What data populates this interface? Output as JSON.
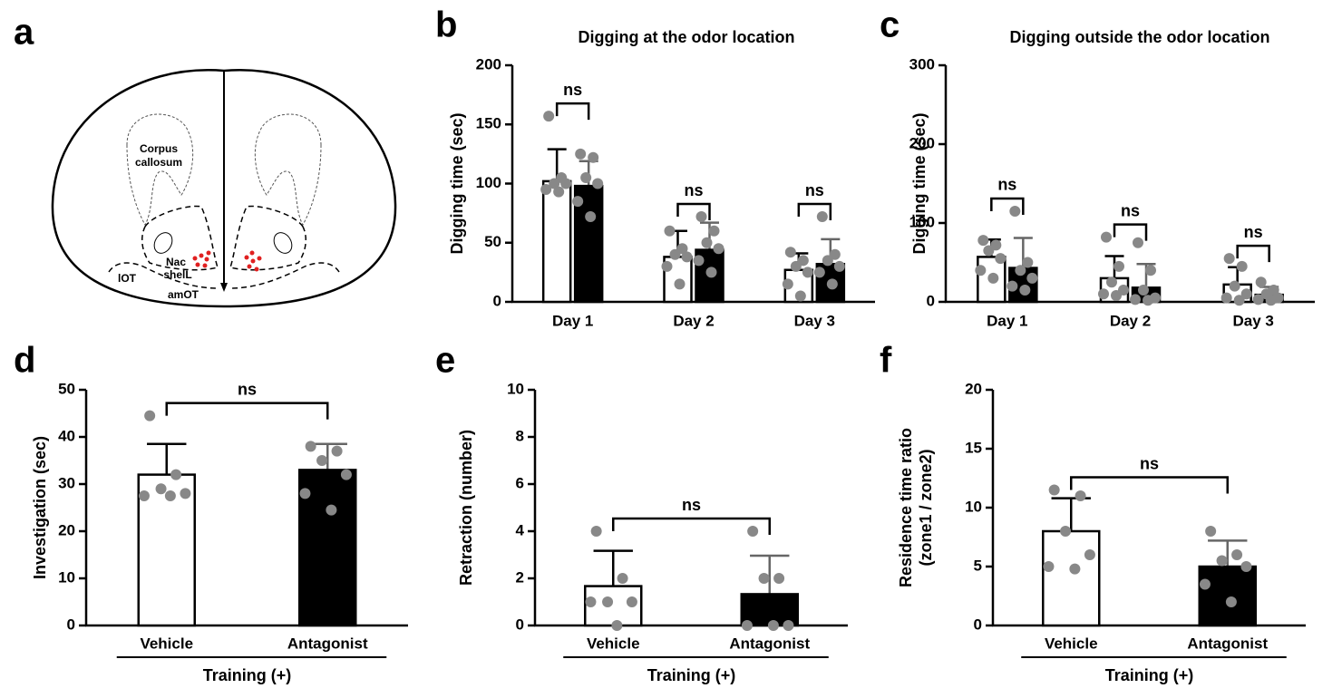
{
  "diagram": {
    "panel": "a",
    "labels": {
      "corpus": [
        "Corpus",
        "callosum"
      ],
      "nac": [
        "Nac",
        "shelL"
      ],
      "lot": "lOT",
      "amot": "amOT"
    }
  },
  "chart_data": [
    {
      "type": "grouped_bar",
      "panel": "b",
      "title": "Digging at the odor location",
      "ylabel": "Digging time (sec)",
      "categories": [
        "Day 1",
        "Day 2",
        "Day 3"
      ],
      "series": [
        {
          "color": "#ffffff",
          "values": [
            102,
            38,
            27
          ],
          "errors": [
            27,
            22,
            14
          ],
          "points": [
            [
              157,
              105,
              100,
              100,
              95,
              93
            ],
            [
              60,
              45,
              40,
              38,
              30,
              15
            ],
            [
              42,
              35,
              30,
              25,
              15,
              5
            ]
          ]
        },
        {
          "color": "#000000",
          "values": [
            98,
            44,
            32
          ],
          "errors": [
            21,
            23,
            21
          ],
          "points": [
            [
              125,
              122,
              105,
              100,
              85,
              72
            ],
            [
              72,
              60,
              50,
              45,
              35,
              25
            ],
            [
              72,
              40,
              35,
              30,
              25,
              15
            ]
          ]
        }
      ],
      "annotations": [
        "ns",
        "ns",
        "ns"
      ],
      "ylim": [
        0,
        200
      ],
      "yticks": [
        0,
        50,
        100,
        150,
        200
      ]
    },
    {
      "type": "grouped_bar",
      "panel": "c",
      "title": "Digging outside the odor location",
      "ylabel": "Digging time (sec)",
      "categories": [
        "Day 1",
        "Day 2",
        "Day 3"
      ],
      "series": [
        {
          "color": "#ffffff",
          "values": [
            57,
            30,
            22
          ],
          "errors": [
            22,
            28,
            22
          ],
          "points": [
            [
              78,
              72,
              65,
              55,
              40,
              30
            ],
            [
              82,
              45,
              25,
              15,
              10,
              8
            ],
            [
              55,
              45,
              20,
              10,
              5,
              2
            ]
          ]
        },
        {
          "color": "#000000",
          "values": [
            43,
            18,
            9
          ],
          "errors": [
            38,
            30,
            10
          ],
          "points": [
            [
              115,
              50,
              40,
              30,
              20,
              15
            ],
            [
              75,
              40,
              15,
              5,
              3,
              2
            ],
            [
              25,
              15,
              10,
              5,
              3,
              2
            ]
          ]
        }
      ],
      "annotations": [
        "ns",
        "ns",
        "ns"
      ],
      "ylim": [
        0,
        300
      ],
      "yticks": [
        0,
        100,
        200,
        300
      ]
    },
    {
      "type": "bar",
      "panel": "d",
      "ylabel": "Investigation (sec)",
      "xlabel": "Training (+)",
      "categories": [
        "Vehicle",
        "Antagonist"
      ],
      "colors": [
        "#ffffff",
        "#000000"
      ],
      "values": [
        32,
        33
      ],
      "errors": [
        6.5,
        5.5
      ],
      "points": [
        [
          44.5,
          32,
          29,
          28,
          27.5,
          27.5
        ],
        [
          38,
          37,
          35,
          32,
          28,
          24.5
        ]
      ],
      "annotations": [
        "ns"
      ],
      "ylim": [
        0,
        50
      ],
      "yticks": [
        0,
        10,
        20,
        30,
        40,
        50
      ]
    },
    {
      "type": "bar",
      "panel": "e",
      "ylabel": "Retraction (number)",
      "xlabel": "Training (+)",
      "categories": [
        "Vehicle",
        "Antagonist"
      ],
      "colors": [
        "#ffffff",
        "#000000"
      ],
      "values": [
        1.67,
        1.33
      ],
      "errors": [
        1.5,
        1.63
      ],
      "points": [
        [
          4,
          2,
          1,
          1,
          1,
          0
        ],
        [
          4,
          2,
          2,
          0,
          0,
          0
        ]
      ],
      "annotations": [
        "ns"
      ],
      "ylim": [
        0,
        10
      ],
      "yticks": [
        0,
        2,
        4,
        6,
        8,
        10
      ]
    },
    {
      "type": "bar",
      "panel": "f",
      "ylabel": [
        "Residence time ratio",
        "(zone1 / zone2)"
      ],
      "xlabel": "Training (+)",
      "categories": [
        "Vehicle",
        "Antagonist"
      ],
      "colors": [
        "#ffffff",
        "#000000"
      ],
      "values": [
        8,
        5
      ],
      "errors": [
        2.8,
        2.2
      ],
      "points": [
        [
          11.5,
          11,
          8,
          6,
          5,
          4.8
        ],
        [
          8,
          6,
          5.5,
          5,
          3.5,
          2
        ]
      ],
      "annotations": [
        "ns"
      ],
      "ylim": [
        0,
        20
      ],
      "yticks": [
        0,
        5,
        10,
        15,
        20
      ]
    }
  ]
}
